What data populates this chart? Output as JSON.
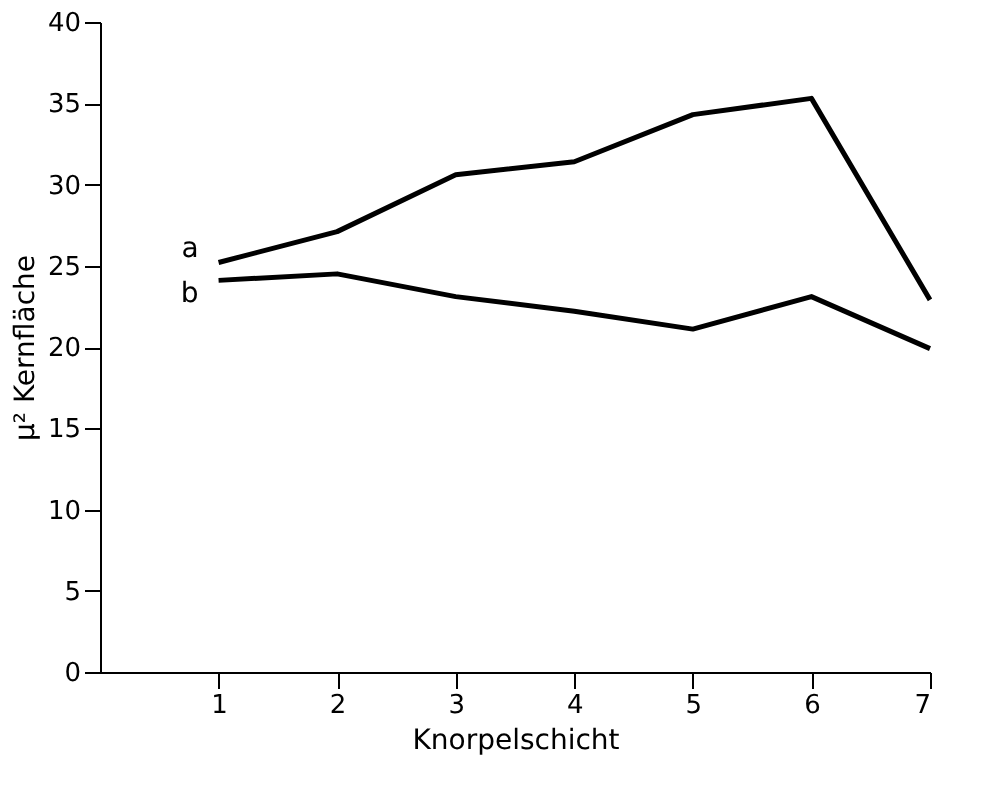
{
  "chart_data": {
    "type": "line",
    "xlabel": "Knorpelschicht",
    "ylabel": "μ² Kernfläche",
    "x": [
      1,
      2,
      3,
      4,
      5,
      6,
      7
    ],
    "series": [
      {
        "name": "a",
        "color": "#000000",
        "values": [
          25.2,
          27.1,
          30.6,
          31.4,
          34.3,
          35.3,
          22.9
        ]
      },
      {
        "name": "b",
        "color": "#000000",
        "values": [
          24.1,
          24.5,
          23.1,
          22.2,
          21.1,
          23.1,
          19.9
        ]
      }
    ],
    "xlim": [
      0,
      7
    ],
    "xticks": [
      1,
      2,
      3,
      4,
      5,
      6,
      7
    ],
    "ylim": [
      0,
      40
    ],
    "yticks": [
      0,
      5,
      10,
      15,
      20,
      25,
      30,
      35,
      40
    ],
    "grid": false,
    "legend": false,
    "marker": "none",
    "line_style": "solid"
  }
}
